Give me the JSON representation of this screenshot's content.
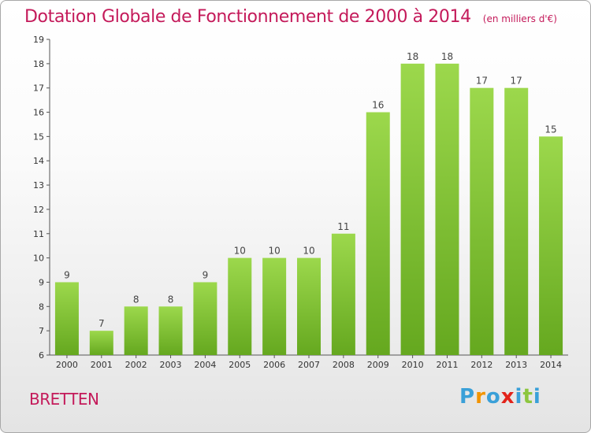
{
  "chart_data": {
    "type": "bar",
    "title": "Dotation Globale de Fonctionnement de 2000 à 2014",
    "subtitle": "(en milliers d'€)",
    "categories": [
      "2000",
      "2001",
      "2002",
      "2003",
      "2004",
      "2005",
      "2006",
      "2007",
      "2008",
      "2009",
      "2010",
      "2011",
      "2012",
      "2013",
      "2014"
    ],
    "values": [
      9,
      7,
      8,
      8,
      9,
      10,
      10,
      10,
      11,
      16,
      18,
      18,
      17,
      17,
      15
    ],
    "ylim": [
      6,
      19
    ],
    "yticks": [
      6,
      7,
      8,
      9,
      10,
      11,
      12,
      13,
      14,
      15,
      16,
      17,
      18,
      19
    ],
    "grid": false,
    "legend": "none",
    "bar_color": "#7fc133",
    "bar_color_light": "#9cd84c",
    "bar_color_dark": "#65a81f"
  },
  "footer": {
    "commune": "BRETTEN",
    "brand_letters": [
      {
        "char": "P",
        "color": "#3aa0d8"
      },
      {
        "char": "r",
        "color": "#f29400"
      },
      {
        "char": "o",
        "color": "#3aa0d8"
      },
      {
        "char": "x",
        "color": "#e2231a"
      },
      {
        "char": "i",
        "color": "#3aa0d8"
      },
      {
        "char": "t",
        "color": "#8dc63f"
      },
      {
        "char": "i",
        "color": "#3aa0d8"
      }
    ]
  }
}
